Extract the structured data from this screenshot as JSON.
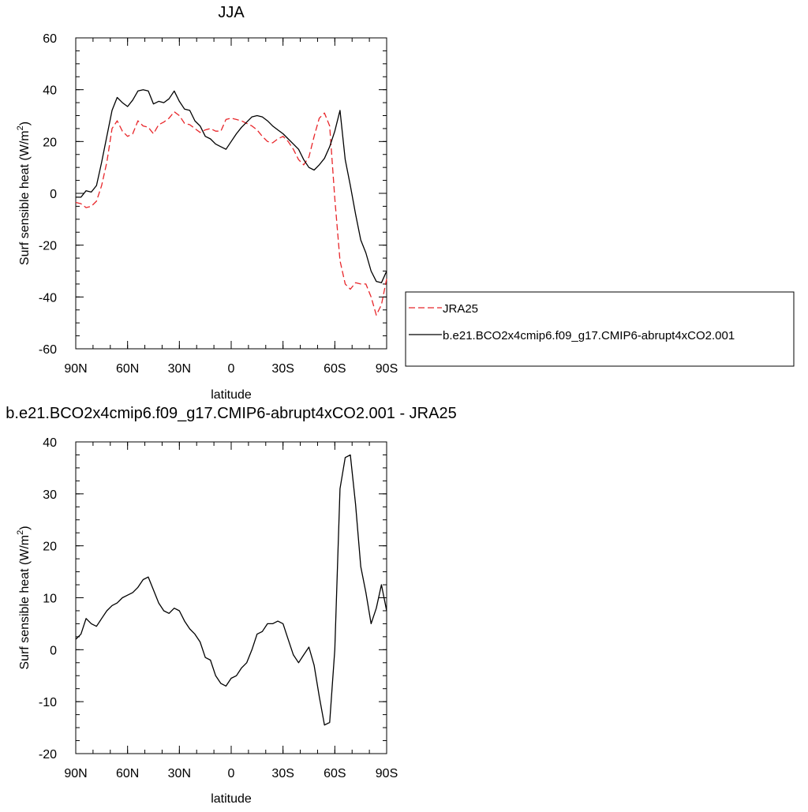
{
  "chart_data": [
    {
      "type": "line",
      "title": "JJA",
      "xlabel": "latitude",
      "ylabel_main": "Surf sensible heat (W/m",
      "ylabel_sup": "2",
      "ylabel_close": ")",
      "xlim": [
        90,
        -90
      ],
      "ylim": [
        -60,
        60
      ],
      "x_ticks": [
        90,
        60,
        30,
        0,
        -30,
        -60,
        -90
      ],
      "x_tick_labels": [
        "90N",
        "60N",
        "30N",
        "0",
        "30S",
        "60S",
        "90S"
      ],
      "y_ticks": [
        60,
        40,
        20,
        0,
        -20,
        -40,
        -60
      ],
      "y_tick_labels": [
        "60",
        "40",
        "20",
        "0",
        "-20",
        "-40",
        "-60"
      ],
      "legend_position": "right",
      "series": [
        {
          "name": "JRA25",
          "color": "#e8262a",
          "dash": "dashed",
          "x": [
            90,
            87,
            84,
            81,
            78,
            75,
            72,
            69,
            66,
            63,
            60,
            57,
            54,
            51,
            48,
            45,
            42,
            39,
            36,
            33,
            30,
            27,
            24,
            21,
            18,
            15,
            12,
            9,
            6,
            3,
            0,
            -3,
            -6,
            -9,
            -12,
            -15,
            -18,
            -21,
            -24,
            -27,
            -30,
            -33,
            -36,
            -39,
            -42,
            -45,
            -48,
            -51,
            -54,
            -57,
            -60,
            -63,
            -66,
            -69,
            -72,
            -75,
            -78,
            -81,
            -84,
            -87,
            -90
          ],
          "y": [
            -3.5,
            -4,
            -5.5,
            -5,
            -3,
            3,
            12,
            25,
            28,
            24,
            22,
            23,
            28,
            26,
            25.5,
            23,
            26.5,
            27.5,
            29,
            31.5,
            30,
            27,
            26.5,
            25,
            23.5,
            24.5,
            25,
            24,
            24,
            28.5,
            29,
            28.5,
            28,
            27,
            26,
            24.5,
            22,
            20,
            19.5,
            21,
            22,
            20,
            17,
            13,
            11,
            14,
            22,
            29,
            31,
            26,
            -2,
            -26,
            -35,
            -37,
            -34.5,
            -35,
            -35,
            -40,
            -47,
            -43,
            -33
          ]
        },
        {
          "name": "b.e21.BCO2x4cmip6.f09_g17.CMIP6-abrupt4xCO2.001",
          "color": "#000000",
          "dash": "solid",
          "x": [
            90,
            87,
            84,
            81,
            78,
            75,
            72,
            69,
            66,
            63,
            60,
            57,
            54,
            51,
            48,
            45,
            42,
            39,
            36,
            33,
            30,
            27,
            24,
            21,
            18,
            15,
            12,
            9,
            6,
            3,
            0,
            -3,
            -6,
            -9,
            -12,
            -15,
            -18,
            -21,
            -24,
            -27,
            -30,
            -33,
            -36,
            -39,
            -42,
            -45,
            -48,
            -51,
            -54,
            -57,
            -60,
            -63,
            -66,
            -69,
            -72,
            -75,
            -78,
            -81,
            -84,
            -87,
            -90
          ],
          "y": [
            -1.5,
            -1.5,
            1,
            0.5,
            3,
            12,
            22,
            32,
            37,
            35,
            33.5,
            36,
            39.5,
            40,
            39.5,
            34.5,
            35.5,
            35,
            36.5,
            39.5,
            35.5,
            32.5,
            32,
            28,
            26,
            22,
            21,
            19,
            18,
            17,
            20,
            23,
            25.5,
            27.5,
            29.5,
            30,
            29.5,
            28,
            26,
            24.5,
            23,
            21,
            19,
            17,
            13,
            10,
            9,
            11,
            13.5,
            18,
            24,
            32,
            13,
            3,
            -8,
            -18,
            -23,
            -30,
            -34,
            -34.5,
            -30
          ]
        }
      ]
    },
    {
      "type": "line",
      "title": "b.e21.BCO2x4cmip6.f09_g17.CMIP6-abrupt4xCO2.001 - JRA25",
      "xlabel": "latitude",
      "ylabel_main": "Surf sensible heat (W/m",
      "ylabel_sup": "2",
      "ylabel_close": ")",
      "xlim": [
        90,
        -90
      ],
      "ylim": [
        -20,
        40
      ],
      "x_ticks": [
        90,
        60,
        30,
        0,
        -30,
        -60,
        -90
      ],
      "x_tick_labels": [
        "90N",
        "60N",
        "30N",
        "0",
        "30S",
        "60S",
        "90S"
      ],
      "y_ticks": [
        40,
        30,
        20,
        10,
        0,
        -10,
        -20
      ],
      "y_tick_labels": [
        "40",
        "30",
        "20",
        "10",
        "0",
        "-10",
        "-20"
      ],
      "series": [
        {
          "color": "#000000",
          "dash": "solid",
          "x": [
            90,
            87,
            84,
            81,
            78,
            75,
            72,
            69,
            66,
            63,
            60,
            57,
            54,
            51,
            48,
            45,
            42,
            39,
            36,
            33,
            30,
            27,
            24,
            21,
            18,
            15,
            12,
            9,
            6,
            3,
            0,
            -3,
            -6,
            -9,
            -12,
            -15,
            -18,
            -21,
            -24,
            -27,
            -30,
            -33,
            -36,
            -39,
            -42,
            -45,
            -48,
            -51,
            -54,
            -57,
            -60,
            -63,
            -66,
            -69,
            -72,
            -75,
            -78,
            -81,
            -84,
            -87,
            -90
          ],
          "y": [
            2,
            3,
            6,
            5,
            4.5,
            6,
            7.5,
            8.5,
            9,
            10,
            10.5,
            11,
            12,
            13.5,
            14,
            11.5,
            9,
            7.5,
            7,
            8,
            7.5,
            5.5,
            4,
            3,
            1.5,
            -1.5,
            -2,
            -5,
            -6.5,
            -7,
            -5.5,
            -5,
            -3.5,
            -2.5,
            0,
            3,
            3.5,
            5,
            5,
            5.5,
            5,
            2,
            -1,
            -2.5,
            -1,
            0.5,
            -3,
            -9,
            -14.5,
            -14,
            0,
            31,
            37,
            37.5,
            28,
            16,
            11,
            5,
            8,
            12.5,
            7.5
          ]
        }
      ]
    }
  ]
}
